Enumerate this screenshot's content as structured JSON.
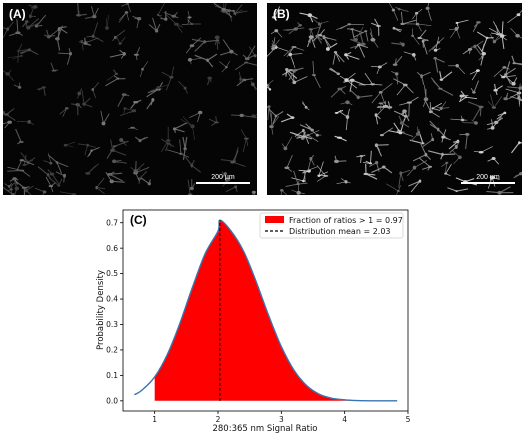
{
  "panels": {
    "a": {
      "label": "(A)",
      "scale_label": "200 µm",
      "cell_count": 140,
      "brightness": 0.55
    },
    "b": {
      "label": "(B)",
      "scale_label": "200 µm",
      "cell_count": 175,
      "brightness": 0.95
    }
  },
  "chart_label": "(C)",
  "chart_data": {
    "type": "area",
    "xlabel": "280:365 nm Signal Ratio",
    "ylabel": "Probability Density",
    "xlim": [
      0.5,
      5.0
    ],
    "ylim": [
      -0.04,
      0.75
    ],
    "xticks": [
      1,
      2,
      3,
      4,
      5
    ],
    "yticks": [
      0.0,
      0.1,
      0.2,
      0.3,
      0.4,
      0.5,
      0.6,
      0.7
    ],
    "curve": {
      "x": [
        0.68,
        0.8,
        1.0,
        1.2,
        1.4,
        1.6,
        1.8,
        2.0,
        2.03,
        2.2,
        2.4,
        2.6,
        2.8,
        3.0,
        3.2,
        3.4,
        3.6,
        3.8,
        4.0,
        4.2,
        4.4,
        4.6,
        4.83
      ],
      "y": [
        0.024,
        0.042,
        0.094,
        0.182,
        0.306,
        0.449,
        0.58,
        0.667,
        0.71,
        0.669,
        0.59,
        0.47,
        0.335,
        0.213,
        0.12,
        0.06,
        0.026,
        0.01,
        0.004,
        0.001,
        0.0,
        0.0,
        0.0
      ],
      "color": "#3a75b0"
    },
    "fill": {
      "from_x": 1.0,
      "color": "#ff0000"
    },
    "mean_line": {
      "x": 2.03,
      "color": "#000000"
    },
    "legend": {
      "position": "top-right",
      "entries": [
        {
          "label": "Fraction of ratios > 1 = 0.97",
          "kind": "patch",
          "color": "#ff0000"
        },
        {
          "label": "Distribution mean = 2.03",
          "kind": "dashed-line",
          "color": "#000000"
        }
      ]
    }
  }
}
